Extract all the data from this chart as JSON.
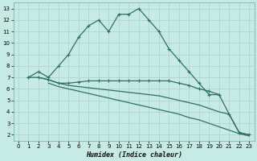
{
  "xlabel": "Humidex (Indice chaleur)",
  "background_color": "#c8eae4",
  "grid_color": "#afd4ce",
  "line_color": "#2a7068",
  "xlim": [
    -0.5,
    23.5
  ],
  "ylim": [
    1.5,
    13.5
  ],
  "xticks": [
    0,
    1,
    2,
    3,
    4,
    5,
    6,
    7,
    8,
    9,
    10,
    11,
    12,
    13,
    14,
    15,
    16,
    17,
    18,
    19,
    20,
    21,
    22,
    23
  ],
  "yticks": [
    2,
    3,
    4,
    5,
    6,
    7,
    8,
    9,
    10,
    11,
    12,
    13
  ],
  "curve1_x": [
    1,
    2,
    3,
    4,
    5,
    6,
    7,
    8,
    9,
    10,
    11,
    12,
    13,
    14,
    15,
    16,
    17,
    18,
    19,
    20
  ],
  "curve1_y": [
    7.0,
    7.5,
    7.0,
    8.0,
    9.0,
    10.5,
    11.5,
    12.0,
    11.0,
    12.5,
    12.5,
    13.0,
    12.0,
    11.0,
    9.5,
    8.5,
    7.5,
    6.5,
    5.5,
    5.5
  ],
  "curve2_x": [
    1,
    2,
    3,
    4,
    5,
    6,
    7,
    8,
    9,
    10,
    11,
    12,
    13,
    14,
    15,
    16,
    17,
    18,
    19,
    20,
    21,
    22,
    23
  ],
  "curve2_y": [
    7.0,
    7.0,
    6.8,
    6.5,
    6.5,
    6.6,
    6.7,
    6.7,
    6.7,
    6.7,
    6.7,
    6.7,
    6.7,
    6.7,
    6.7,
    6.5,
    6.3,
    6.0,
    5.8,
    5.5,
    3.8,
    2.2,
    2.0
  ],
  "curve3_x": [
    2,
    3,
    4,
    5,
    6,
    7,
    8,
    9,
    10,
    11,
    12,
    13,
    14,
    15,
    16,
    17,
    18,
    19,
    20,
    21,
    22,
    23
  ],
  "curve3_y": [
    7.0,
    6.8,
    6.5,
    6.3,
    6.2,
    6.1,
    6.0,
    5.9,
    5.8,
    5.7,
    5.6,
    5.5,
    5.4,
    5.2,
    5.0,
    4.8,
    4.6,
    4.3,
    4.0,
    3.8,
    2.2,
    2.0
  ],
  "curve4_x": [
    3,
    4,
    5,
    6,
    7,
    8,
    9,
    10,
    11,
    12,
    13,
    14,
    15,
    16,
    17,
    18,
    19,
    20,
    21,
    22,
    23
  ],
  "curve4_y": [
    6.5,
    6.2,
    6.0,
    5.8,
    5.6,
    5.4,
    5.2,
    5.0,
    4.8,
    4.6,
    4.4,
    4.2,
    4.0,
    3.8,
    3.5,
    3.3,
    3.0,
    2.7,
    2.4,
    2.1,
    1.9
  ]
}
